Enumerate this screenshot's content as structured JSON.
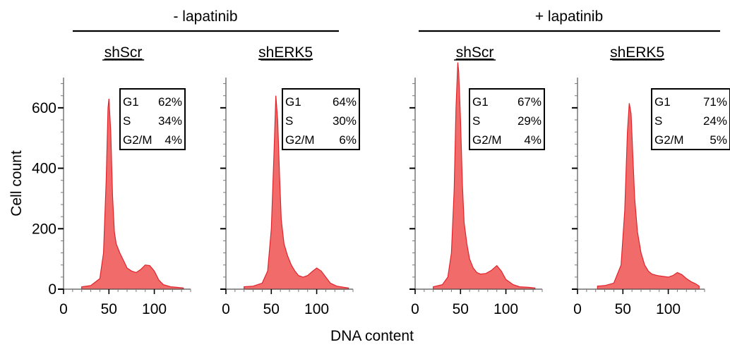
{
  "groups": [
    {
      "label": "- lapatinib"
    },
    {
      "label": "+ lapatinib"
    }
  ],
  "axes": {
    "ylabel": "Cell count",
    "xlabel": "DNA content",
    "ylim": [
      0,
      700
    ],
    "yticks": [
      0,
      200,
      400,
      600
    ],
    "xticks": [
      0,
      50,
      100
    ],
    "xlim": [
      0,
      140
    ]
  },
  "colors": {
    "fill": "#f26b6b",
    "stroke": "#e0242b",
    "box": "#000000"
  },
  "chart_data": [
    {
      "type": "area",
      "group": "- lapatinib",
      "title": "shScr",
      "phases": [
        {
          "label": "G1",
          "value": "62%"
        },
        {
          "label": "S",
          "value": "34%"
        },
        {
          "label": "G2/M",
          "value": "4%"
        }
      ],
      "x": [
        20,
        30,
        40,
        44,
        47,
        49,
        50,
        52,
        54,
        56,
        58,
        62,
        66,
        70,
        75,
        80,
        85,
        90,
        95,
        100,
        105,
        110,
        118,
        125,
        132
      ],
      "y": [
        8,
        12,
        35,
        120,
        360,
        600,
        630,
        520,
        310,
        190,
        150,
        120,
        95,
        70,
        60,
        55,
        65,
        80,
        78,
        60,
        30,
        15,
        8,
        6,
        4
      ]
    },
    {
      "type": "area",
      "group": "- lapatinib",
      "title": "shERK5",
      "phases": [
        {
          "label": "G1",
          "value": "64%"
        },
        {
          "label": "S",
          "value": "30%"
        },
        {
          "label": "G2/M",
          "value": "6%"
        }
      ],
      "x": [
        20,
        30,
        40,
        46,
        50,
        53,
        55,
        57,
        59,
        61,
        64,
        68,
        72,
        76,
        80,
        85,
        90,
        95,
        100,
        105,
        110,
        115,
        122,
        130,
        135
      ],
      "y": [
        8,
        10,
        20,
        60,
        200,
        450,
        640,
        560,
        380,
        230,
        150,
        110,
        80,
        60,
        45,
        40,
        45,
        58,
        70,
        60,
        40,
        20,
        10,
        6,
        4
      ]
    },
    {
      "type": "area",
      "group": "+ lapatinib",
      "title": "shScr",
      "phases": [
        {
          "label": "G1",
          "value": "67%"
        },
        {
          "label": "S",
          "value": "29%"
        },
        {
          "label": "G2/M",
          "value": "4%"
        }
      ],
      "x": [
        20,
        30,
        36,
        40,
        43,
        45,
        47,
        48,
        50,
        52,
        54,
        57,
        60,
        64,
        68,
        72,
        78,
        84,
        90,
        95,
        100,
        108,
        115,
        125,
        132
      ],
      "y": [
        8,
        15,
        40,
        120,
        330,
        600,
        750,
        720,
        560,
        350,
        220,
        150,
        100,
        70,
        55,
        50,
        52,
        62,
        78,
        60,
        32,
        15,
        8,
        6,
        4
      ]
    },
    {
      "type": "area",
      "group": "+ lapatinib",
      "title": "shERK5",
      "phases": [
        {
          "label": "G1",
          "value": "71%"
        },
        {
          "label": "S",
          "value": "24%"
        },
        {
          "label": "G2/M",
          "value": "5%"
        }
      ],
      "x": [
        22,
        30,
        40,
        48,
        52,
        55,
        57,
        59,
        61,
        63,
        66,
        70,
        74,
        78,
        82,
        88,
        95,
        100,
        105,
        110,
        115,
        120,
        125,
        130,
        134
      ],
      "y": [
        10,
        12,
        20,
        80,
        260,
        520,
        615,
        580,
        440,
        300,
        190,
        120,
        80,
        60,
        50,
        45,
        42,
        40,
        45,
        55,
        48,
        35,
        25,
        18,
        10
      ]
    }
  ]
}
